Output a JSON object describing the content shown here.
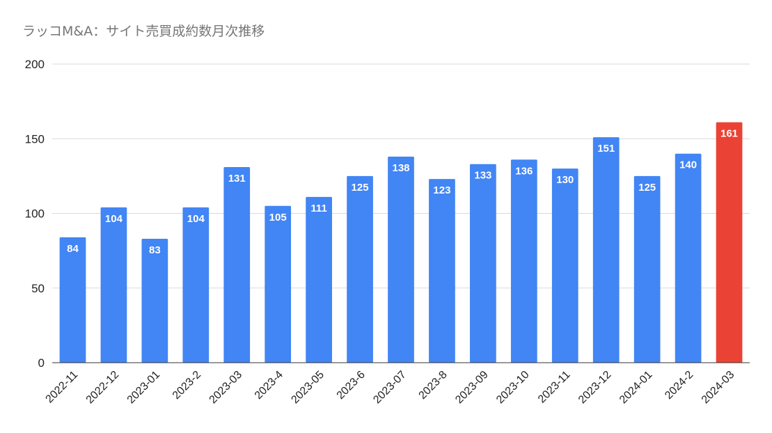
{
  "chart_data": {
    "type": "bar",
    "title": "ラッコM&A：サイト売買成約数月次推移",
    "xlabel": "",
    "ylabel": "",
    "categories": [
      "2022-11",
      "2022-12",
      "2023-01",
      "2023-2",
      "2023-03",
      "2023-4",
      "2023-05",
      "2023-6",
      "2023-07",
      "2023-8",
      "2023-09",
      "2023-10",
      "2023-11",
      "2023-12",
      "2024-01",
      "2024-2",
      "2024-03"
    ],
    "values": [
      84,
      104,
      83,
      104,
      131,
      105,
      111,
      125,
      138,
      123,
      133,
      136,
      130,
      151,
      125,
      140,
      161
    ],
    "ylim": [
      0,
      200
    ],
    "yticks": [
      0,
      50,
      100,
      150,
      200
    ],
    "grid": true,
    "legend": "none",
    "colors": {
      "bar": "#4285f4",
      "highlight": "#ea4335",
      "highlight_index": 16,
      "grid": "#d9d9d9",
      "axis": "#333333"
    }
  }
}
